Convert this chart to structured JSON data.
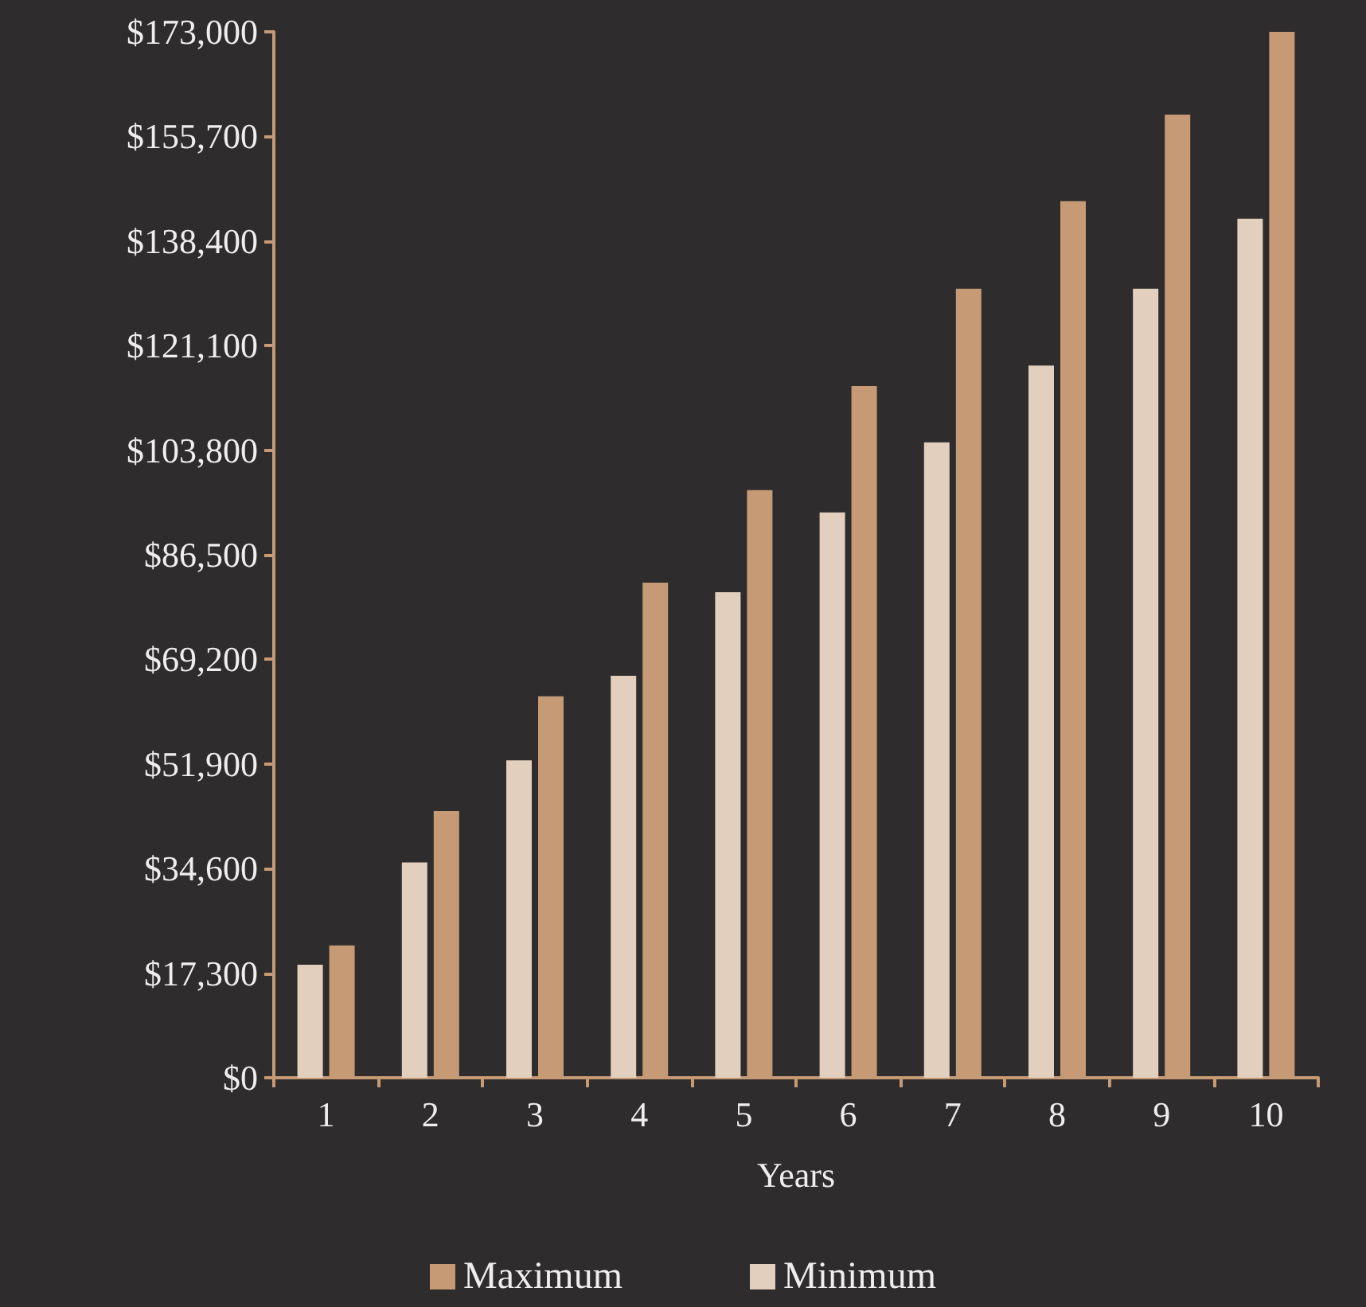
{
  "chart_data": {
    "type": "bar",
    "xlabel": "Years",
    "categories": [
      "1",
      "2",
      "3",
      "4",
      "5",
      "6",
      "7",
      "8",
      "9",
      "10"
    ],
    "series": [
      {
        "name": "Maximum",
        "color": "#c69a74",
        "values": [
          21900,
          44100,
          63100,
          81900,
          97200,
          114400,
          130500,
          145000,
          159300,
          173000
        ]
      },
      {
        "name": "Minimum",
        "color": "#e3cfbd",
        "values": [
          18700,
          35600,
          52500,
          66500,
          80300,
          93500,
          105100,
          117800,
          130500,
          142100
        ]
      }
    ],
    "ylim": [
      0,
      173000
    ],
    "yticks": [
      {
        "value": 0,
        "label": "$0"
      },
      {
        "value": 17300,
        "label": "$17,300"
      },
      {
        "value": 34600,
        "label": "$34,600"
      },
      {
        "value": 51900,
        "label": "$51,900"
      },
      {
        "value": 69200,
        "label": "$69,200"
      },
      {
        "value": 86500,
        "label": "$86,500"
      },
      {
        "value": 103800,
        "label": "$103,800"
      },
      {
        "value": 121100,
        "label": "$121,100"
      },
      {
        "value": 138400,
        "label": "$138,400"
      },
      {
        "value": 155700,
        "label": "$155,700"
      },
      {
        "value": 173000,
        "label": "$173,000"
      }
    ],
    "grid": false,
    "legend": "bottom"
  }
}
